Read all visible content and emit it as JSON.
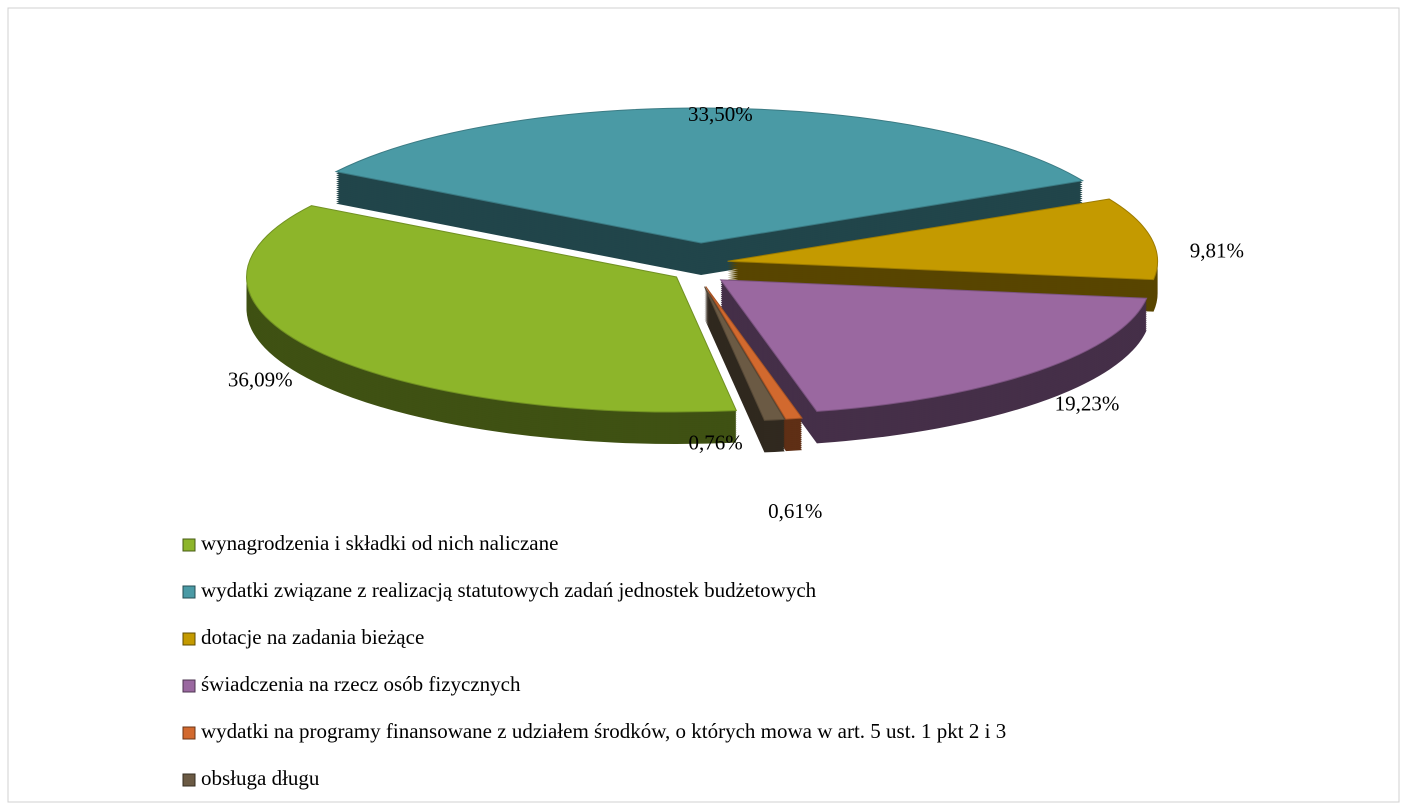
{
  "chart_data": {
    "type": "pie",
    "categories": [
      "wynagrodzenia i składki od nich naliczane",
      "wydatki związane z realizacją statutowych zadań jednostek budżetowych",
      "dotacje na zadania bieżące",
      "świadczenia na rzecz osób fizycznych",
      "wydatki na programy finansowane z udziałem środków, o których mowa w art. 5 ust. 1 pkt 2 i 3",
      "obsługa długu"
    ],
    "values": [
      36.09,
      33.5,
      9.81,
      19.23,
      0.61,
      0.76
    ],
    "value_labels": [
      "36,09%",
      "33,50%",
      "9,81%",
      "19,23%",
      "0,61%",
      "0,76%"
    ],
    "colors": [
      "#8db52a",
      "#4a9aa5",
      "#c49a00",
      "#9a68a0",
      "#d2692e",
      "#6b5a44"
    ],
    "legend": "bottom"
  }
}
